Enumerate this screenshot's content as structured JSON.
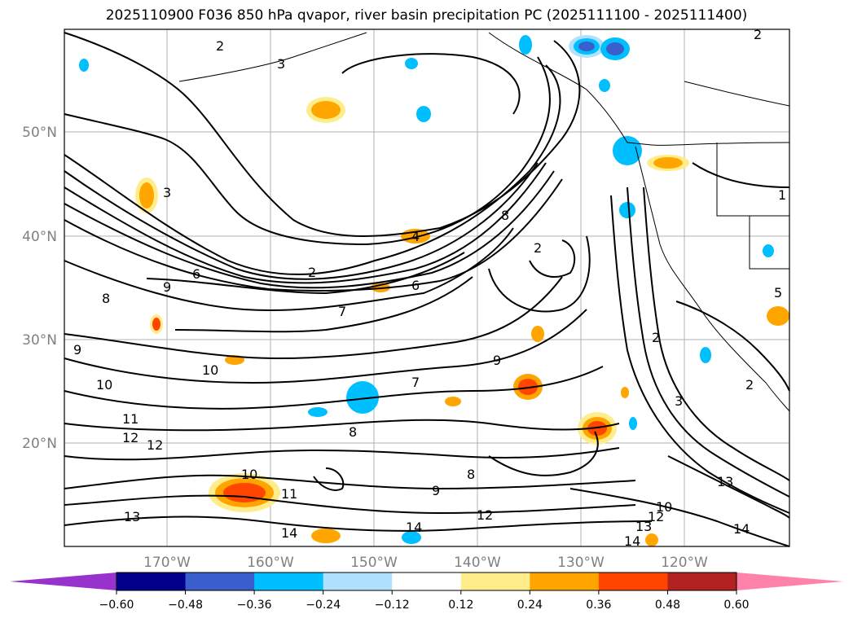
{
  "title": "2025110900 F036 850 hPa qvapor, river basin precipitation PC (2025111100 - 2025111400)",
  "lat_labels": [
    "50°N",
    "40°N",
    "30°N",
    "20°N"
  ],
  "lon_labels": [
    "170°W",
    "160°W",
    "150°W",
    "140°W",
    "130°W",
    "120°W"
  ],
  "colorbar": {
    "ticks": [
      "−0.60",
      "−0.48",
      "−0.36",
      "−0.24",
      "−0.12",
      "0.12",
      "0.24",
      "0.36",
      "0.48",
      "0.60"
    ],
    "colors": [
      "#9932cc",
      "#00008b",
      "#3a5fcd",
      "#00bfff",
      "#b0e2ff",
      "#ffffff",
      "#ffec8b",
      "#ffa500",
      "#ff4500",
      "#b22222",
      "#ff83a8",
      "#ff83a8"
    ]
  },
  "contour_labels": [
    "2",
    "3",
    "3",
    "2",
    "4",
    "6",
    "8",
    "9",
    "6",
    "2",
    "2",
    "7",
    "8",
    "9",
    "10",
    "10",
    "9",
    "11",
    "12",
    "12",
    "8",
    "13",
    "11",
    "10",
    "14",
    "14",
    "12",
    "9",
    "8",
    "7",
    "13",
    "14",
    "12",
    "10",
    "13",
    "14",
    "2",
    "2",
    "3",
    "5",
    "1"
  ]
}
